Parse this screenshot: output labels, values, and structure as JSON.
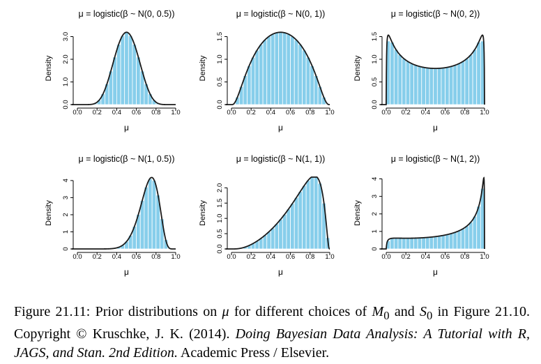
{
  "figure": {
    "colors": {
      "bar": "#87ceeb",
      "bar_edge": "#ffffff",
      "curve": "#1a1a1a"
    },
    "shared": {
      "xlabel": "μ",
      "ylabel": "Density",
      "xticks": [
        "0.0",
        "0.2",
        "0.4",
        "0.6",
        "0.8",
        "1.0"
      ]
    }
  },
  "chart_data": [
    {
      "type": "bar",
      "title": "μ = logistic(β ~ N(0, 0.5))",
      "xlabel": "μ",
      "ylabel": "Density",
      "xlim": [
        0,
        1
      ],
      "ylim": [
        0,
        3.2
      ],
      "yticks": [
        "0.0",
        "1.0",
        "2.0",
        "3.0"
      ],
      "ytick_values": [
        0,
        1,
        2,
        3
      ],
      "logistic_normal": {
        "m": 0,
        "s": 0.5
      }
    },
    {
      "type": "bar",
      "title": "μ = logistic(β ~ N(0, 1))",
      "xlabel": "μ",
      "ylabel": "Density",
      "xlim": [
        0,
        1
      ],
      "ylim": [
        0,
        1.6
      ],
      "yticks": [
        "0.0",
        "0.5",
        "1.0",
        "1.5"
      ],
      "ytick_values": [
        0,
        0.5,
        1,
        1.5
      ],
      "logistic_normal": {
        "m": 0,
        "s": 1
      }
    },
    {
      "type": "bar",
      "title": "μ = logistic(β ~ N(0, 2))",
      "xlabel": "μ",
      "ylabel": "Density",
      "xlim": [
        0,
        1
      ],
      "ylim": [
        0,
        1.6
      ],
      "yticks": [
        "0.0",
        "0.5",
        "1.0",
        "1.5"
      ],
      "ytick_values": [
        0,
        0.5,
        1,
        1.5
      ],
      "logistic_normal": {
        "m": 0,
        "s": 2
      }
    },
    {
      "type": "bar",
      "title": "μ = logistic(β ~ N(1, 0.5))",
      "xlabel": "μ",
      "ylabel": "Density",
      "xlim": [
        0,
        1
      ],
      "ylim": [
        0,
        4.2
      ],
      "yticks": [
        "0",
        "1",
        "2",
        "3",
        "4"
      ],
      "ytick_values": [
        0,
        1,
        2,
        3,
        4
      ],
      "logistic_normal": {
        "m": 1,
        "s": 0.5
      }
    },
    {
      "type": "bar",
      "title": "μ = logistic(β ~ N(1, 1))",
      "xlabel": "μ",
      "ylabel": "Density",
      "xlim": [
        0,
        1
      ],
      "ylim": [
        0,
        2.35
      ],
      "yticks": [
        "0.0",
        "0.5",
        "1.0",
        "1.5",
        "2.0"
      ],
      "ytick_values": [
        0,
        0.5,
        1,
        1.5,
        2
      ],
      "logistic_normal": {
        "m": 1,
        "s": 1
      }
    },
    {
      "type": "bar",
      "title": "μ = logistic(β ~ N(1, 2))",
      "xlabel": "μ",
      "ylabel": "Density",
      "xlim": [
        0,
        1
      ],
      "ylim": [
        0,
        4.1
      ],
      "yticks": [
        "0",
        "1",
        "2",
        "3",
        "4"
      ],
      "ytick_values": [
        0,
        1,
        2,
        3,
        4
      ],
      "logistic_normal": {
        "m": 1,
        "s": 2
      }
    }
  ],
  "caption": {
    "prefix": "Figure 21.11: Prior distributions on ",
    "mu": "μ",
    "mid1": " for different choices of ",
    "m0_base": "M",
    "m0_sub": "0",
    "mid2": " and ",
    "s0_base": "S",
    "s0_sub": "0",
    "mid3": " in Figure 21.10.  Copyright © Kruschke, J. K. (2014). ",
    "book": "Doing Bayesian Data Analysis: A Tutorial with R, JAGS, and Stan. 2nd Edition.",
    "suffix": " Academic Press / Elsevier."
  }
}
